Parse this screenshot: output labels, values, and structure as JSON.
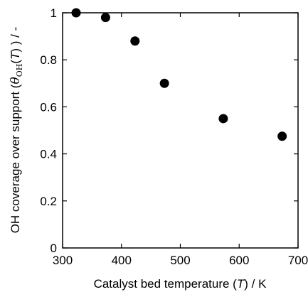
{
  "chart_data": {
    "type": "scatter",
    "xlabel": "Catalyst bed temperature (T) / K",
    "ylabel": "OH coverage over support (θOH(T) ) / -",
    "xlabel_parts": {
      "pre": "Catalyst bed temperature (",
      "var": "T",
      "post": ") / K"
    },
    "ylabel_parts": {
      "pre": "OH coverage over support (",
      "symbol": "θ",
      "subscript": "OH",
      "arg_open": "(",
      "arg_var": "T",
      "arg_close": ") ) / -"
    },
    "xlim": [
      300,
      700
    ],
    "ylim": [
      0,
      1
    ],
    "xticks": [
      300,
      400,
      500,
      600,
      700
    ],
    "yticks": [
      0,
      0.2,
      0.4,
      0.6,
      0.8,
      1
    ],
    "x_tick_labels": [
      "300",
      "400",
      "500",
      "600",
      "700"
    ],
    "y_tick_labels": [
      "0",
      "0.2",
      "0.4",
      "0.6",
      "0.8",
      "1"
    ],
    "grid": false,
    "legend": "none",
    "marker_color": "#000000",
    "series": [
      {
        "x": [
          323,
          373,
          423,
          473,
          573,
          673
        ],
        "y": [
          1.0,
          0.98,
          0.88,
          0.7,
          0.55,
          0.475
        ]
      }
    ]
  }
}
